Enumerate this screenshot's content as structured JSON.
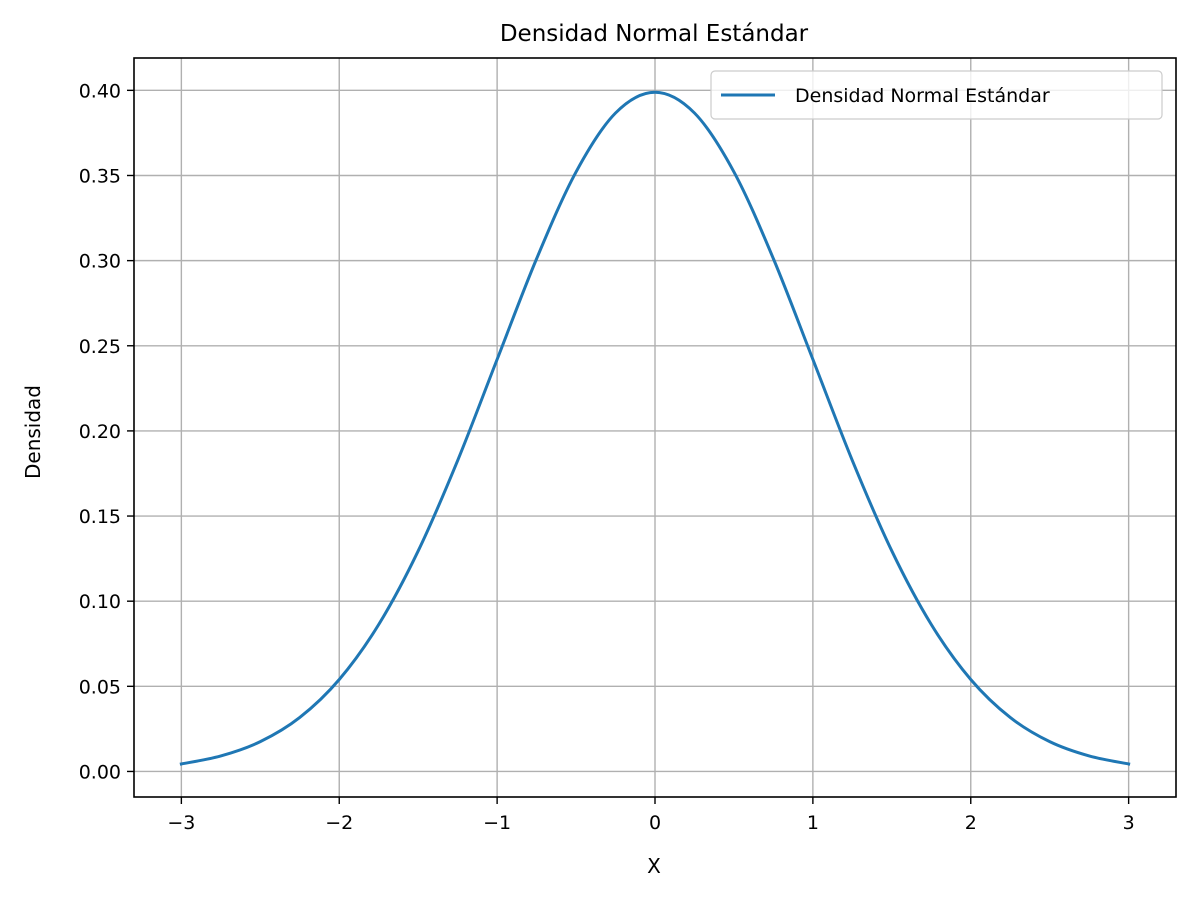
{
  "chart_data": {
    "type": "line",
    "title": "Densidad Normal Estándar",
    "xlabel": "X",
    "ylabel": "Densidad",
    "xlim": [
      -3.3,
      3.3
    ],
    "ylim": [
      -0.015,
      0.419
    ],
    "grid": true,
    "legend_position": "top-right",
    "x_ticks": [
      -3,
      -2,
      -1,
      0,
      1,
      2,
      3
    ],
    "x_tick_labels": [
      "−3",
      "−2",
      "−1",
      "0",
      "1",
      "2",
      "3"
    ],
    "y_ticks": [
      0.0,
      0.05,
      0.1,
      0.15,
      0.2,
      0.25,
      0.3,
      0.35,
      0.4
    ],
    "y_tick_labels": [
      "0.00",
      "0.05",
      "0.10",
      "0.15",
      "0.20",
      "0.25",
      "0.30",
      "0.35",
      "0.40"
    ],
    "series": [
      {
        "name": "Densidad Normal Estándar",
        "color": "#1f77b4",
        "x": [
          -3.0,
          -2.75,
          -2.5,
          -2.25,
          -2.0,
          -1.75,
          -1.5,
          -1.25,
          -1.0,
          -0.75,
          -0.5,
          -0.25,
          0.0,
          0.25,
          0.5,
          0.75,
          1.0,
          1.25,
          1.5,
          1.75,
          2.0,
          2.25,
          2.5,
          2.75,
          3.0
        ],
        "y": [
          0.0044,
          0.0091,
          0.0175,
          0.0317,
          0.054,
          0.0863,
          0.1295,
          0.1826,
          0.242,
          0.3011,
          0.3521,
          0.3867,
          0.3989,
          0.3867,
          0.3521,
          0.3011,
          0.242,
          0.1826,
          0.1295,
          0.0863,
          0.054,
          0.0317,
          0.0175,
          0.0091,
          0.0044
        ]
      }
    ]
  }
}
